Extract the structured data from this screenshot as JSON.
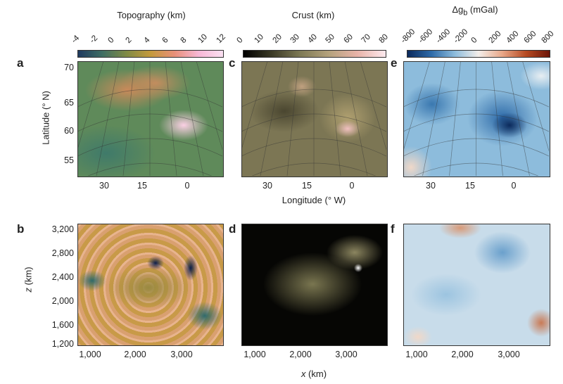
{
  "colorbars": [
    {
      "title": "Topography (km)",
      "ticks": [
        "-4",
        "-2",
        "0",
        "2",
        "4",
        "6",
        "8",
        "10",
        "12"
      ],
      "colors": [
        "#1f3a5f",
        "#3f6e63",
        "#7f8a45",
        "#c49a3c",
        "#e8907a",
        "#f7b8d6",
        "#fbe0f2"
      ]
    },
    {
      "title": "Crust (km)",
      "ticks": [
        "0",
        "10",
        "20",
        "30",
        "40",
        "50",
        "60",
        "70",
        "80"
      ],
      "colors": [
        "#000000",
        "#3b3a26",
        "#7e7a55",
        "#b4a27c",
        "#e8b3a8",
        "#fde9ee"
      ]
    },
    {
      "title_main": "Δg",
      "title_sub": "b",
      "title_unit": " (mGal)",
      "ticks": [
        "-800",
        "-600",
        "-400",
        "-200",
        "0",
        "200",
        "400",
        "600",
        "800"
      ],
      "colors": [
        "#0b2a5c",
        "#2d6aa8",
        "#8dbcdc",
        "#f3eeea",
        "#e8a788",
        "#b64a22",
        "#6b1508"
      ]
    }
  ],
  "panel_labels": [
    "a",
    "c",
    "e",
    "b",
    "d",
    "f"
  ],
  "top_row": {
    "ylabel": "Latitude (° N)",
    "yticks": [
      "70",
      "65",
      "60",
      "55"
    ],
    "xlabel": "Longitude (° W)",
    "xticks": [
      "30",
      "15",
      "0"
    ]
  },
  "bottom_row": {
    "ylabel_var": "z",
    "ylabel_unit": " (km)",
    "yticks": [
      "3,200",
      "2,800",
      "2,400",
      "2,000",
      "1,600",
      "1,200"
    ],
    "xlabel_var": "x",
    "xlabel_unit": " (km)",
    "xticks": [
      "1,000",
      "2,000",
      "3,000"
    ]
  }
}
